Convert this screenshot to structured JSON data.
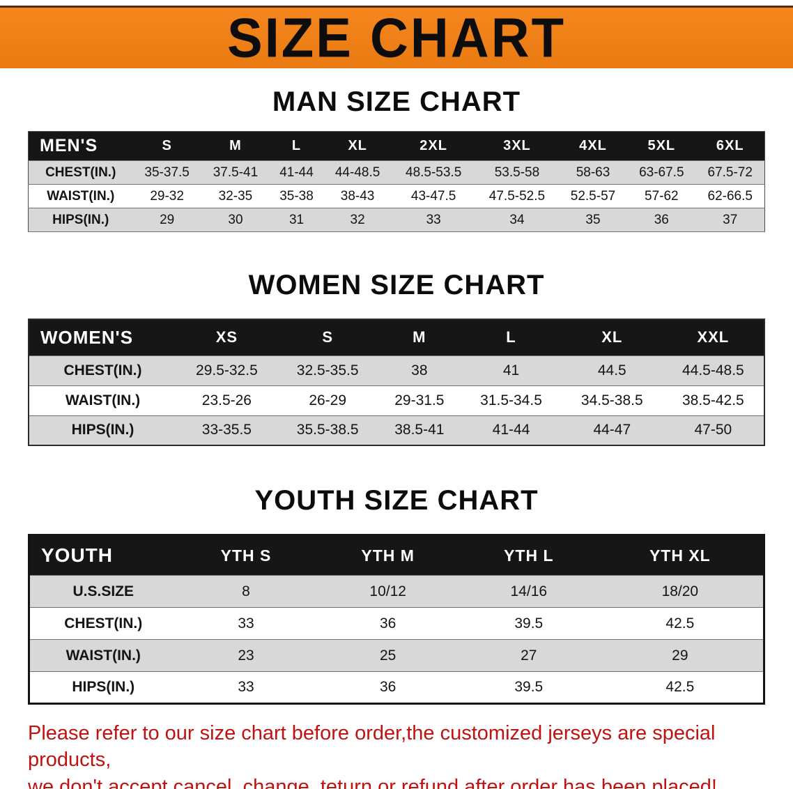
{
  "banner": {
    "title": "SIZE CHART"
  },
  "colors": {
    "banner_bg": "#f6871f",
    "banner_bg_dark": "#e97a12",
    "header_bg": "#161616",
    "row_alt": "#d8d8d8",
    "disclaimer_red": "#c11212",
    "title_text": "#0d0d0d"
  },
  "men": {
    "heading": "MAN SIZE CHART",
    "table": {
      "header": [
        "MEN'S",
        "S",
        "M",
        "L",
        "XL",
        "2XL",
        "3XL",
        "4XL",
        "5XL",
        "6XL"
      ],
      "rows": [
        [
          "CHEST(IN.)",
          "35-37.5",
          "37.5-41",
          "41-44",
          "44-48.5",
          "48.5-53.5",
          "53.5-58",
          "58-63",
          "63-67.5",
          "67.5-72"
        ],
        [
          "WAIST(IN.)",
          "29-32",
          "32-35",
          "35-38",
          "38-43",
          "43-47.5",
          "47.5-52.5",
          "52.5-57",
          "57-62",
          "62-66.5"
        ],
        [
          "HIPS(IN.)",
          "29",
          "30",
          "31",
          "32",
          "33",
          "34",
          "35",
          "36",
          "37"
        ]
      ]
    }
  },
  "women": {
    "heading": "WOMEN SIZE CHART",
    "table": {
      "header": [
        "WOMEN'S",
        "XS",
        "S",
        "M",
        "L",
        "XL",
        "XXL"
      ],
      "rows": [
        [
          "CHEST(IN.)",
          "29.5-32.5",
          "32.5-35.5",
          "38",
          "41",
          "44.5",
          "44.5-48.5"
        ],
        [
          "WAIST(IN.)",
          "23.5-26",
          "26-29",
          "29-31.5",
          "31.5-34.5",
          "34.5-38.5",
          "38.5-42.5"
        ],
        [
          "HIPS(IN.)",
          "33-35.5",
          "35.5-38.5",
          "38.5-41",
          "41-44",
          "44-47",
          "47-50"
        ]
      ]
    }
  },
  "youth": {
    "heading": "YOUTH SIZE CHART",
    "table": {
      "header": [
        "YOUTH",
        "YTH S",
        "YTH M",
        "YTH L",
        "YTH XL"
      ],
      "rows": [
        [
          "U.S.SIZE",
          "8",
          "10/12",
          "14/16",
          "18/20"
        ],
        [
          "CHEST(IN.)",
          "33",
          "36",
          "39.5",
          "42.5"
        ],
        [
          "WAIST(IN.)",
          "23",
          "25",
          "27",
          "29"
        ],
        [
          "HIPS(IN.)",
          "33",
          "36",
          "39.5",
          "42.5"
        ]
      ]
    }
  },
  "disclaimer": {
    "line1": "Please refer to our size chart before order,the customized jerseys are special products,",
    "line2": "we don't accept cancel, change, teturn or refund after order has been placed!"
  }
}
